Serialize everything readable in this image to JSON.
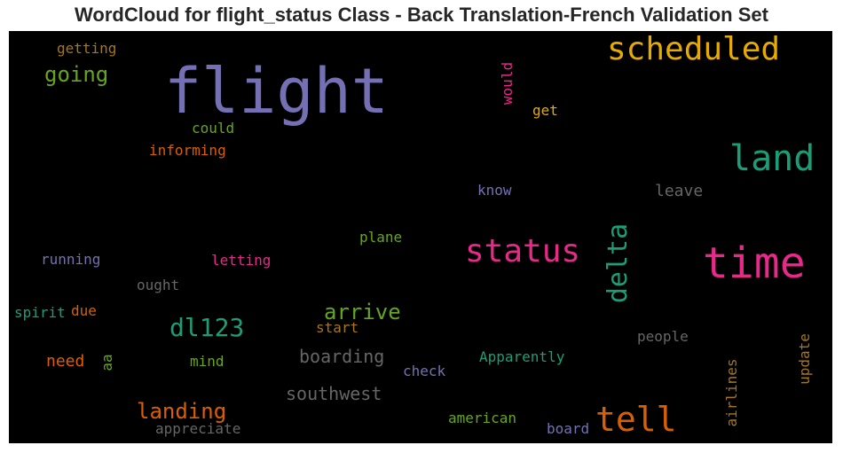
{
  "chart_data": {
    "type": "wordcloud",
    "title": "WordCloud for flight_status Class - Back Translation-French Validation Set",
    "background": "#000000",
    "palette": [
      "#7570b3",
      "#1b9e77",
      "#e7298a",
      "#d95f02",
      "#e6ab02",
      "#66a61e",
      "#a6761d",
      "#666666"
    ],
    "words": [
      {
        "text": "flight",
        "weight": 1.0,
        "color": "#7570b3",
        "vertical": false
      },
      {
        "text": "time",
        "weight": 0.62,
        "color": "#e7298a",
        "vertical": false
      },
      {
        "text": "scheduled",
        "weight": 0.5,
        "color": "#e6ab02",
        "vertical": false
      },
      {
        "text": "land",
        "weight": 0.52,
        "color": "#1b9e77",
        "vertical": false
      },
      {
        "text": "status",
        "weight": 0.5,
        "color": "#e7298a",
        "vertical": false
      },
      {
        "text": "tell",
        "weight": 0.5,
        "color": "#d95f02",
        "vertical": false
      },
      {
        "text": "delta",
        "weight": 0.42,
        "color": "#1b9e77",
        "vertical": true
      },
      {
        "text": "dl123",
        "weight": 0.38,
        "color": "#1b9e77",
        "vertical": false
      },
      {
        "text": "going",
        "weight": 0.33,
        "color": "#66a61e",
        "vertical": false
      },
      {
        "text": "landing",
        "weight": 0.33,
        "color": "#d95f02",
        "vertical": false
      },
      {
        "text": "arrive",
        "weight": 0.3,
        "color": "#66a61e",
        "vertical": false
      },
      {
        "text": "boarding",
        "weight": 0.28,
        "color": "#666666",
        "vertical": false
      },
      {
        "text": "southwest",
        "weight": 0.28,
        "color": "#666666",
        "vertical": false
      },
      {
        "text": "leave",
        "weight": 0.25,
        "color": "#666666",
        "vertical": false
      },
      {
        "text": "need",
        "weight": 0.25,
        "color": "#d95f02",
        "vertical": false
      },
      {
        "text": "informing",
        "weight": 0.2,
        "color": "#d95f02",
        "vertical": false
      },
      {
        "text": "could",
        "weight": 0.2,
        "color": "#66a61e",
        "vertical": false
      },
      {
        "text": "get",
        "weight": 0.2,
        "color": "#e6ab02",
        "vertical": false
      },
      {
        "text": "getting",
        "weight": 0.2,
        "color": "#a6761d",
        "vertical": false
      },
      {
        "text": "would",
        "weight": 0.2,
        "color": "#e7298a",
        "vertical": true
      },
      {
        "text": "know",
        "weight": 0.2,
        "color": "#7570b3",
        "vertical": false
      },
      {
        "text": "plane",
        "weight": 0.2,
        "color": "#66a61e",
        "vertical": false
      },
      {
        "text": "running",
        "weight": 0.2,
        "color": "#7570b3",
        "vertical": false
      },
      {
        "text": "letting",
        "weight": 0.2,
        "color": "#e7298a",
        "vertical": false
      },
      {
        "text": "ought",
        "weight": 0.2,
        "color": "#666666",
        "vertical": false
      },
      {
        "text": "spirit",
        "weight": 0.2,
        "color": "#1b9e77",
        "vertical": false
      },
      {
        "text": "due",
        "weight": 0.2,
        "color": "#d95f02",
        "vertical": false
      },
      {
        "text": "start",
        "weight": 0.2,
        "color": "#a6761d",
        "vertical": false
      },
      {
        "text": "aa",
        "weight": 0.2,
        "color": "#66a61e",
        "vertical": true
      },
      {
        "text": "mind",
        "weight": 0.2,
        "color": "#66a61e",
        "vertical": false
      },
      {
        "text": "check",
        "weight": 0.2,
        "color": "#7570b3",
        "vertical": false
      },
      {
        "text": "Apparently",
        "weight": 0.2,
        "color": "#1b9e77",
        "vertical": false
      },
      {
        "text": "people",
        "weight": 0.2,
        "color": "#666666",
        "vertical": false
      },
      {
        "text": "airlines",
        "weight": 0.2,
        "color": "#a6761d",
        "vertical": true
      },
      {
        "text": "update",
        "weight": 0.2,
        "color": "#a6761d",
        "vertical": true
      },
      {
        "text": "american",
        "weight": 0.2,
        "color": "#66a61e",
        "vertical": false
      },
      {
        "text": "board",
        "weight": 0.2,
        "color": "#7570b3",
        "vertical": false
      },
      {
        "text": "appreciate",
        "weight": 0.2,
        "color": "#666666",
        "vertical": false
      }
    ]
  }
}
